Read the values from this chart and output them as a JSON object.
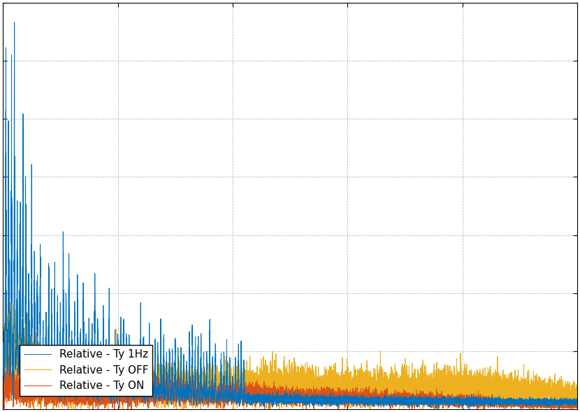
{
  "line1_label": "Relative - Ty 1Hz",
  "line2_label": "Relative - Ty ON",
  "line3_label": "Relative - Ty OFF",
  "line1_color": "#0072BD",
  "line2_color": "#D95319",
  "line3_color": "#EDB120",
  "background_color": "#FFFFFF",
  "legend_loc": "lower left",
  "linewidth1": 0.7,
  "linewidth2": 0.8,
  "linewidth3": 0.8,
  "n_points": 10000,
  "freq_max": 200.0,
  "seed1": 42,
  "seed2": 123,
  "seed3": 77
}
